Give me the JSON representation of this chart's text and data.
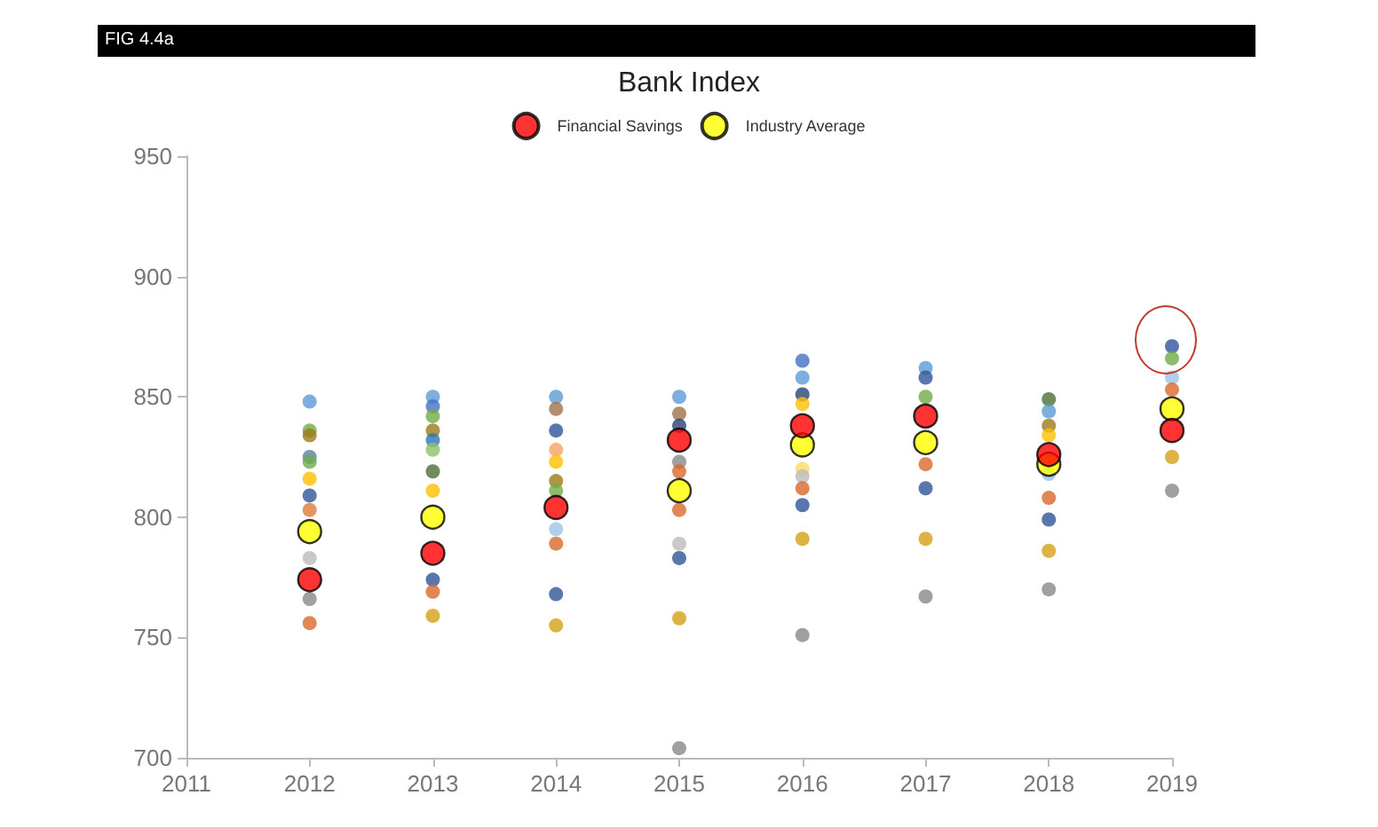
{
  "chart_data": {
    "type": "scatter",
    "title": "Bank Index",
    "annotations": [
      "FIG 4.4a"
    ],
    "xlim": [
      2011,
      2019
    ],
    "xticks": [
      2011,
      2012,
      2013,
      2014,
      2015,
      2016,
      2017,
      2018,
      2019
    ],
    "ylim": [
      700,
      950
    ],
    "yticks": [
      700,
      750,
      800,
      850,
      900,
      950
    ],
    "grid": false,
    "legend": "top",
    "marker": "circle",
    "series": [
      {
        "x": [
          2012,
          2012,
          2012,
          2012,
          2012,
          2012,
          2012,
          2012,
          2012,
          2012,
          2012,
          2013,
          2013,
          2013,
          2013,
          2013,
          2013,
          2013,
          2013,
          2013,
          2013,
          2013,
          2014,
          2014,
          2014,
          2014,
          2014,
          2014,
          2014,
          2014,
          2014,
          2014,
          2014,
          2015,
          2015,
          2015,
          2015,
          2015,
          2015,
          2015,
          2015,
          2015,
          2015,
          2016,
          2016,
          2016,
          2016,
          2016,
          2016,
          2016,
          2016,
          2016,
          2016,
          2017,
          2017,
          2017,
          2017,
          2017,
          2017,
          2017,
          2018,
          2018,
          2018,
          2018,
          2018,
          2018,
          2018,
          2018,
          2018,
          2019,
          2019,
          2019,
          2019,
          2019,
          2019
        ],
        "values": [
          848,
          836,
          834,
          825,
          823,
          816,
          809,
          803,
          783,
          766,
          756,
          850,
          846,
          842,
          836,
          832,
          828,
          819,
          811,
          774,
          769,
          759,
          850,
          845,
          836,
          828,
          823,
          815,
          811,
          795,
          789,
          768,
          755,
          850,
          843,
          838,
          823,
          819,
          803,
          789,
          783,
          758,
          704,
          865,
          858,
          851,
          847,
          820,
          817,
          812,
          805,
          791,
          751,
          862,
          858,
          850,
          822,
          812,
          791,
          767,
          849,
          844,
          838,
          834,
          818,
          808,
          799,
          786,
          770,
          871,
          866,
          858,
          853,
          825,
          811
        ],
        "colors": [
          "#5b9bd5",
          "#70ad47",
          "#9c7a1a",
          "#5a7fa8",
          "#70ad47",
          "#ffc000",
          "#2f5597",
          "#e07b39",
          "#bbbbbb",
          "#888888",
          "#d9692a",
          "#5b9bd5",
          "#4472c4",
          "#70ad47",
          "#9c7a1a",
          "#2e75b6",
          "#8cc26a",
          "#4e6e3a",
          "#ffc000",
          "#2f5597",
          "#d9692a",
          "#d4a017",
          "#5b9bd5",
          "#a0704a",
          "#2f5597",
          "#f4a460",
          "#ffc000",
          "#9c7a1a",
          "#70ad47",
          "#9dc3e6",
          "#d9692a",
          "#2f5597",
          "#d4a017",
          "#5b9bd5",
          "#a0704a",
          "#264478",
          "#888888",
          "#d9692a",
          "#d9692a",
          "#bbbbbb",
          "#2f5597",
          "#d4a017",
          "#888888",
          "#4472c4",
          "#5b9bd5",
          "#264478",
          "#ffc000",
          "#ffd966",
          "#bbbbbb",
          "#d9692a",
          "#2f5597",
          "#d4a017",
          "#888888",
          "#5b9bd5",
          "#2f5597",
          "#70ad47",
          "#d9692a",
          "#2f5597",
          "#d4a017",
          "#888888",
          "#4e6e3a",
          "#5b9bd5",
          "#9c7a1a",
          "#ffc000",
          "#9dc3e6",
          "#d9692a",
          "#2f5597",
          "#d4a017",
          "#888888",
          "#2f5597",
          "#70ad47",
          "#9dc3e6",
          "#d9692a",
          "#d4a017",
          "#888888"
        ]
      },
      {
        "name": "Financial Savings",
        "color": "#ff0000",
        "x": [
          2012,
          2013,
          2014,
          2015,
          2016,
          2017,
          2018,
          2019
        ],
        "values": [
          774,
          785,
          804,
          832,
          838,
          842,
          826,
          836
        ]
      },
      {
        "name": "Industry Average",
        "color": "#ffff00",
        "x": [
          2012,
          2013,
          2014,
          2015,
          2016,
          2017,
          2018,
          2019
        ],
        "values": [
          794,
          800,
          null,
          811,
          830,
          831,
          822,
          845
        ]
      }
    ]
  }
}
